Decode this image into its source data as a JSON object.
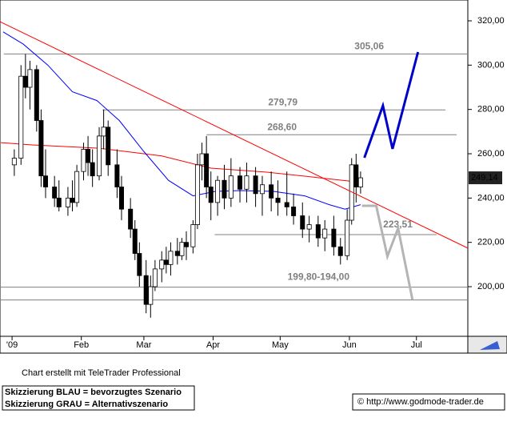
{
  "chart_data": {
    "type": "candlestick",
    "xlim": [
      -4.4,
      205
    ],
    "ylim": [
      177.6,
      329.4
    ],
    "xticks": [
      {
        "value": 1,
        "label": "'09"
      },
      {
        "value": 32,
        "label": "Feb"
      },
      {
        "value": 60,
        "label": "Mar"
      },
      {
        "value": 91,
        "label": "Apr"
      },
      {
        "value": 121,
        "label": "May"
      },
      {
        "value": 152,
        "label": "Jun"
      },
      {
        "value": 182,
        "label": "Jul"
      }
    ],
    "yticks": [
      {
        "value": 200,
        "label": "200,00"
      },
      {
        "value": 220,
        "label": "220,00"
      },
      {
        "value": 240,
        "label": "240,00"
      },
      {
        "value": 260,
        "label": "260,00"
      },
      {
        "value": 280,
        "label": "280,00"
      },
      {
        "value": 300,
        "label": "300,00"
      },
      {
        "value": 320,
        "label": "320,00"
      }
    ],
    "candles": {
      "x": [
        2,
        5,
        7,
        9,
        12,
        14,
        16,
        20,
        22,
        26,
        28,
        30,
        33,
        35,
        37,
        40,
        42,
        44,
        48,
        50,
        54,
        56,
        58,
        61,
        63,
        65,
        68,
        70,
        72,
        75,
        77,
        79,
        82,
        84,
        86,
        88,
        90,
        93,
        96,
        99,
        103,
        106,
        110,
        113,
        117,
        120,
        124,
        127,
        131,
        134,
        138,
        141,
        145,
        148,
        151,
        153,
        155,
        157
      ],
      "open": [
        255,
        258,
        295,
        290,
        298,
        275,
        250,
        245,
        240,
        236,
        240,
        238,
        252,
        262,
        256,
        250,
        268,
        272,
        255,
        245,
        235,
        226,
        215,
        205,
        192,
        200,
        208,
        212,
        210,
        216,
        214,
        220,
        218,
        228,
        255,
        260,
        245,
        238,
        248,
        240,
        250,
        244,
        250,
        242,
        246,
        240,
        238,
        236,
        232,
        226,
        228,
        222,
        226,
        218,
        214,
        230,
        255,
        245
      ],
      "high": [
        262,
        300,
        305,
        302,
        300,
        280,
        262,
        250,
        248,
        245,
        248,
        255,
        265,
        268,
        262,
        272,
        280,
        275,
        262,
        250,
        240,
        230,
        220,
        212,
        205,
        212,
        216,
        218,
        220,
        222,
        222,
        225,
        230,
        260,
        265,
        268,
        252,
        250,
        255,
        258,
        254,
        256,
        254,
        250,
        252,
        248,
        252,
        242,
        238,
        232,
        232,
        230,
        232,
        222,
        235,
        258,
        260,
        252
      ],
      "low": [
        250,
        255,
        285,
        280,
        270,
        245,
        240,
        236,
        234,
        232,
        234,
        236,
        248,
        250,
        245,
        248,
        262,
        250,
        240,
        230,
        222,
        212,
        200,
        188,
        186,
        198,
        202,
        206,
        205,
        210,
        212,
        212,
        215,
        226,
        248,
        240,
        230,
        232,
        235,
        236,
        238,
        238,
        236,
        232,
        234,
        232,
        232,
        228,
        222,
        220,
        218,
        216,
        214,
        210,
        212,
        228,
        238,
        242
      ],
      "close": [
        258,
        295,
        290,
        298,
        275,
        250,
        245,
        240,
        236,
        240,
        238,
        252,
        262,
        256,
        250,
        268,
        272,
        255,
        245,
        235,
        226,
        215,
        205,
        192,
        200,
        208,
        212,
        210,
        216,
        214,
        220,
        218,
        228,
        255,
        260,
        245,
        238,
        248,
        240,
        250,
        244,
        250,
        242,
        246,
        240,
        238,
        236,
        232,
        226,
        228,
        222,
        226,
        218,
        214,
        230,
        255,
        245,
        249.14
      ]
    },
    "last_price": {
      "value": 249.14,
      "label": "249,14"
    },
    "trendline": {
      "color": "#ff0000",
      "x": [
        -4.4,
        205
      ],
      "y": [
        319.6,
        217.4
      ]
    },
    "lines": [
      {
        "color": "#ff0000",
        "x": [
          -4,
          10,
          40,
          68,
          90,
          115,
          140,
          158
        ],
        "y": [
          265,
          264,
          262.5,
          259,
          253.5,
          251.7,
          249,
          247
        ]
      },
      {
        "color": "#0000ff",
        "x": [
          -3,
          6,
          17,
          28,
          39,
          49,
          60,
          71,
          82,
          92,
          103,
          118,
          132,
          143,
          150,
          157
        ],
        "y": [
          315,
          309.5,
          300,
          288,
          284,
          275,
          261,
          248,
          241,
          243,
          243.4,
          243,
          241,
          237,
          235,
          237
        ]
      }
    ],
    "levels": [
      {
        "value": 305.06,
        "label": "305,06",
        "x0": -2.7,
        "x1": 205
      },
      {
        "value": 279.79,
        "label": "279,79",
        "x0": 41.5,
        "x1": 195
      },
      {
        "value": 268.6,
        "label": "268,60",
        "x0": 88,
        "x1": 200
      },
      {
        "value": 223.51,
        "label": "223,51",
        "x0": 91.7,
        "x1": 191
      },
      {
        "value": 199.8,
        "label": "199,80-194,00",
        "x0": -4.4,
        "x1": 205
      },
      {
        "value": 194.0,
        "x0": -4.4,
        "x1": 205
      }
    ],
    "scenarios": [
      {
        "color": "#0000cc",
        "x": [
          158.7,
          167,
          171.3,
          182.7
        ],
        "y": [
          258.2,
          281.7,
          262.2,
          305.9
        ]
      },
      {
        "color": "#b4b4b4",
        "x": [
          157.6,
          164,
          169,
          173.8,
          180.2
        ],
        "y": [
          236.5,
          236.5,
          213.7,
          226.4,
          194.2
        ]
      }
    ]
  },
  "footer": {
    "credit": "Chart erstellt mit TeleTrader Professional",
    "legend_blue": "Skizzierung BLAU = bevorzugtes Szenario",
    "legend_gray": "Skizzierung GRAU = Alternativszenario",
    "source": "© http://www.godmode-trader.de"
  }
}
